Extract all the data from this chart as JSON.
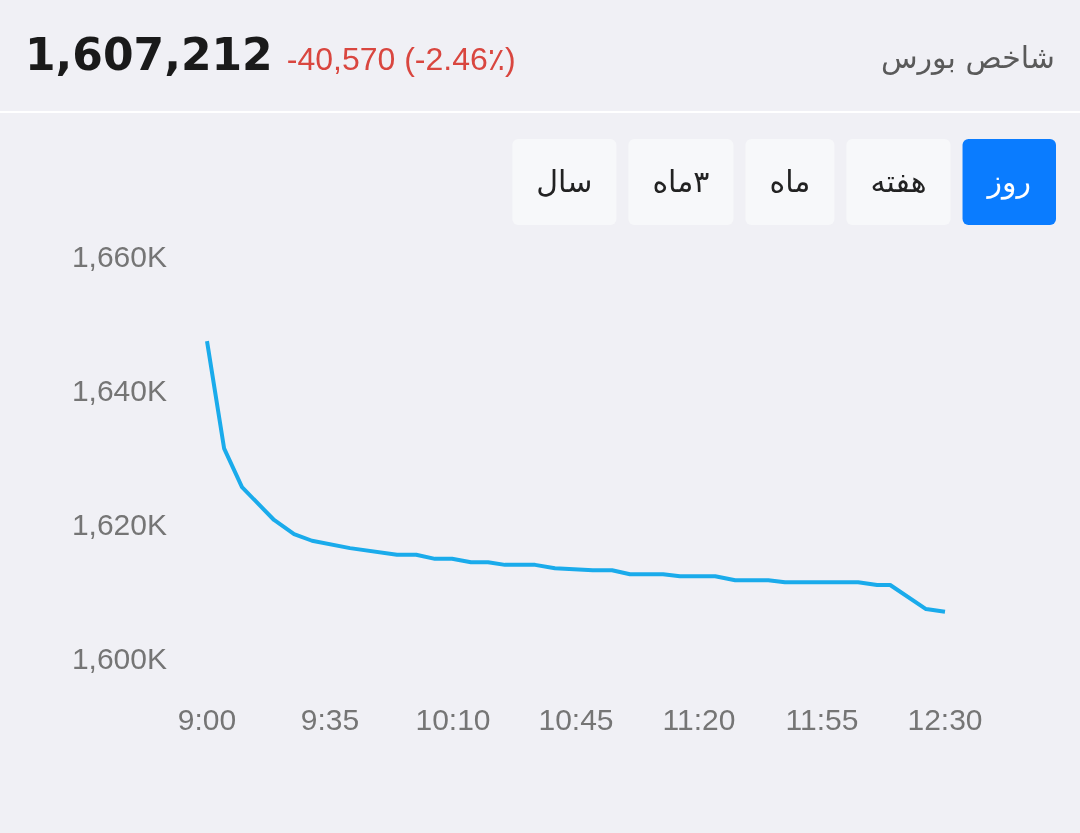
{
  "chart_data": {
    "type": "line",
    "title": "شاخص بورس",
    "annotations": [
      "1,607,212",
      "-40,570 (-2.46٪)",
      "روز",
      "هفته",
      "ماه",
      "۳ماه",
      "سال"
    ],
    "series": [
      {
        "color": "#1aabeb",
        "x": [
          9.0,
          9.081,
          9.166,
          9.318,
          9.413,
          9.498,
          9.678,
          9.901,
          9.992,
          10.081,
          10.162,
          10.252,
          10.333,
          10.413,
          10.556,
          10.65,
          10.83,
          10.921,
          11.006,
          11.163,
          11.243,
          11.41,
          11.505,
          11.662,
          11.741,
          12.088,
          12.178,
          12.24,
          12.41,
          12.5
        ],
        "values": [
          1647.3,
          1631.3,
          1625.5,
          1620.6,
          1618.5,
          1617.5,
          1616.4,
          1615.4,
          1615.4,
          1614.8,
          1614.8,
          1614.3,
          1614.3,
          1613.9,
          1613.9,
          1613.4,
          1613.1,
          1613.1,
          1612.5,
          1612.5,
          1612.2,
          1612.2,
          1611.6,
          1611.6,
          1611.3,
          1611.3,
          1610.9,
          1610.9,
          1607.3,
          1606.9
        ]
      }
    ],
    "xlim": [
      9,
      12.5
    ],
    "xticks": [
      {
        "value": 9,
        "label": "9:00"
      },
      {
        "value": 9.5833,
        "label": "9:35"
      },
      {
        "value": 10.1667,
        "label": "10:10"
      },
      {
        "value": 10.75,
        "label": "10:45"
      },
      {
        "value": 11.3333,
        "label": "11:20"
      },
      {
        "value": 11.9167,
        "label": "11:55"
      },
      {
        "value": 12.5,
        "label": "12:30"
      }
    ],
    "ylim": [
      1600,
      1660
    ],
    "yticks": [
      {
        "value": 1600,
        "label": "1,600K"
      },
      {
        "value": 1620,
        "label": "1,620K"
      },
      {
        "value": 1640,
        "label": "1,640K"
      },
      {
        "value": 1660,
        "label": "1,660K"
      }
    ]
  }
}
